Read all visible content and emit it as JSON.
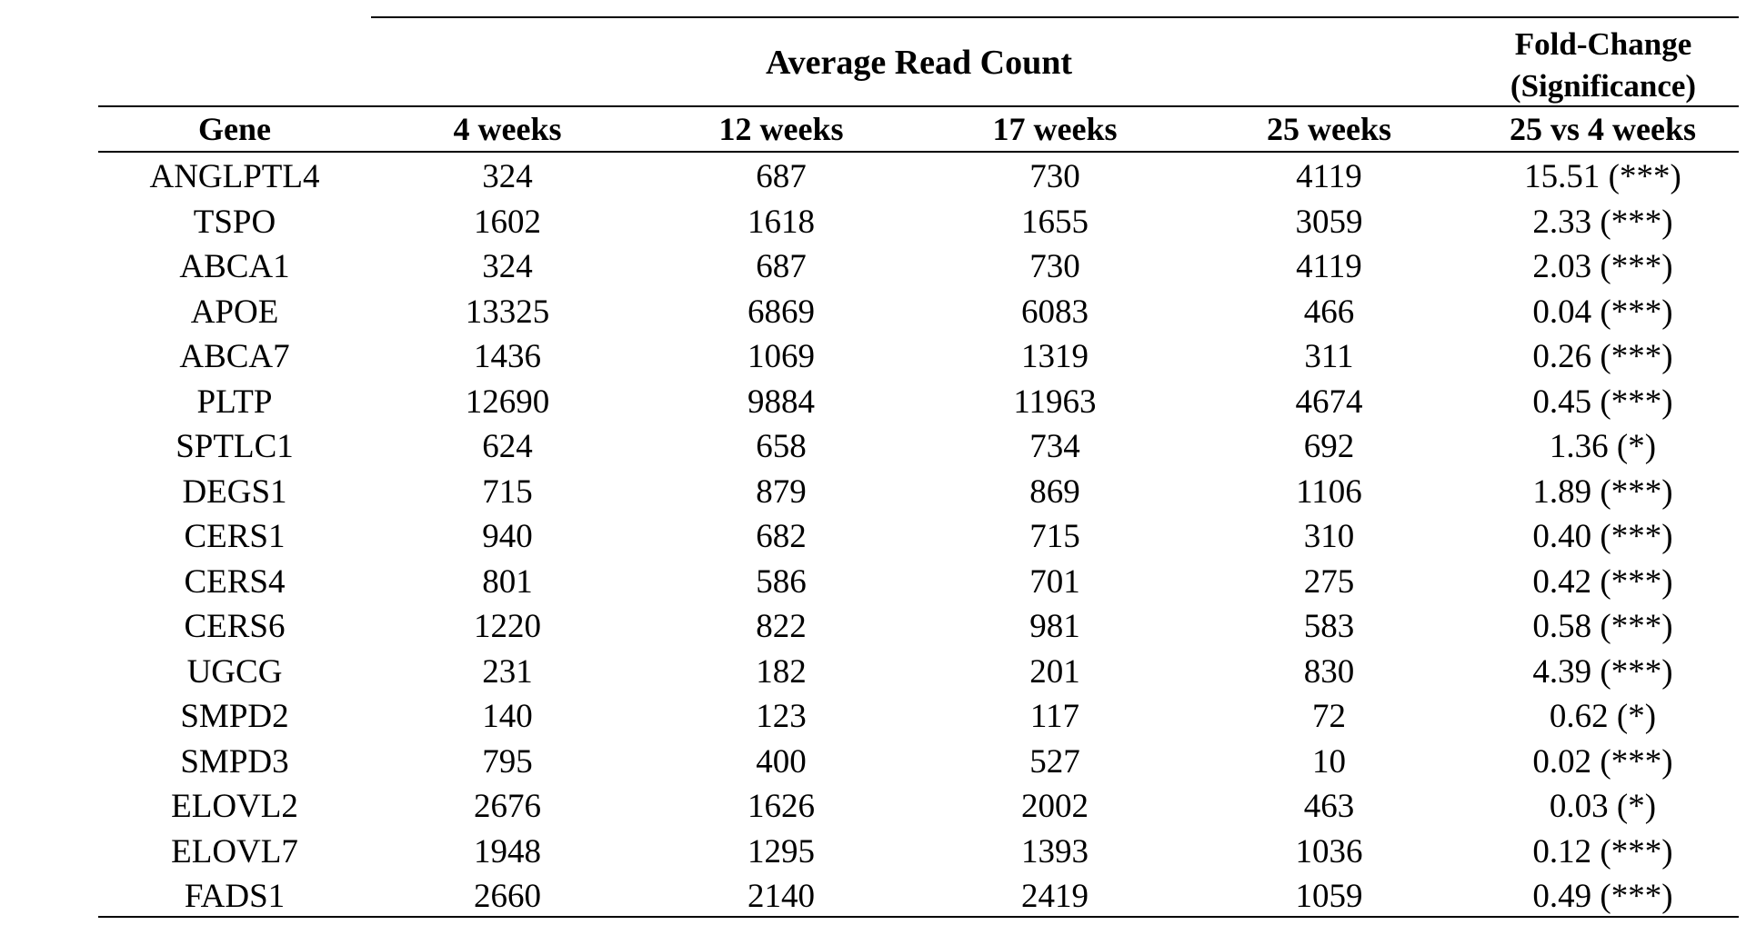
{
  "table": {
    "group_header": "Average Read Count",
    "fold_header_line1": "Fold-Change",
    "fold_header_line2": "(Significance)",
    "columns": [
      "Gene",
      "4 weeks",
      "12 weeks",
      "17 weeks",
      "25 weeks",
      "25 vs 4 weeks"
    ],
    "rows": [
      [
        "ANGLPTL4",
        "324",
        "687",
        "730",
        "4119",
        "15.51 (***)"
      ],
      [
        "TSPO",
        "1602",
        "1618",
        "1655",
        "3059",
        "2.33 (***)"
      ],
      [
        "ABCA1",
        "324",
        "687",
        "730",
        "4119",
        "2.03 (***)"
      ],
      [
        "APOE",
        "13325",
        "6869",
        "6083",
        "466",
        "0.04 (***)"
      ],
      [
        "ABCA7",
        "1436",
        "1069",
        "1319",
        "311",
        "0.26 (***)"
      ],
      [
        "PLTP",
        "12690",
        "9884",
        "11963",
        "4674",
        "0.45 (***)"
      ],
      [
        "SPTLC1",
        "624",
        "658",
        "734",
        "692",
        "1.36 (*)"
      ],
      [
        "DEGS1",
        "715",
        "879",
        "869",
        "1106",
        "1.89 (***)"
      ],
      [
        "CERS1",
        "940",
        "682",
        "715",
        "310",
        "0.40 (***)"
      ],
      [
        "CERS4",
        "801",
        "586",
        "701",
        "275",
        "0.42 (***)"
      ],
      [
        "CERS6",
        "1220",
        "822",
        "981",
        "583",
        "0.58 (***)"
      ],
      [
        "UGCG",
        "231",
        "182",
        "201",
        "830",
        "4.39 (***)"
      ],
      [
        "SMPD2",
        "140",
        "123",
        "117",
        "72",
        "0.62 (*)"
      ],
      [
        "SMPD3",
        "795",
        "400",
        "527",
        "10",
        "0.02 (***)"
      ],
      [
        "ELOVL2",
        "2676",
        "1626",
        "2002",
        "463",
        "0.03 (*)"
      ],
      [
        "ELOVL7",
        "1948",
        "1295",
        "1393",
        "1036",
        "0.12 (***)"
      ],
      [
        "FADS1",
        "2660",
        "2140",
        "2419",
        "1059",
        "0.49 (***)"
      ]
    ]
  }
}
